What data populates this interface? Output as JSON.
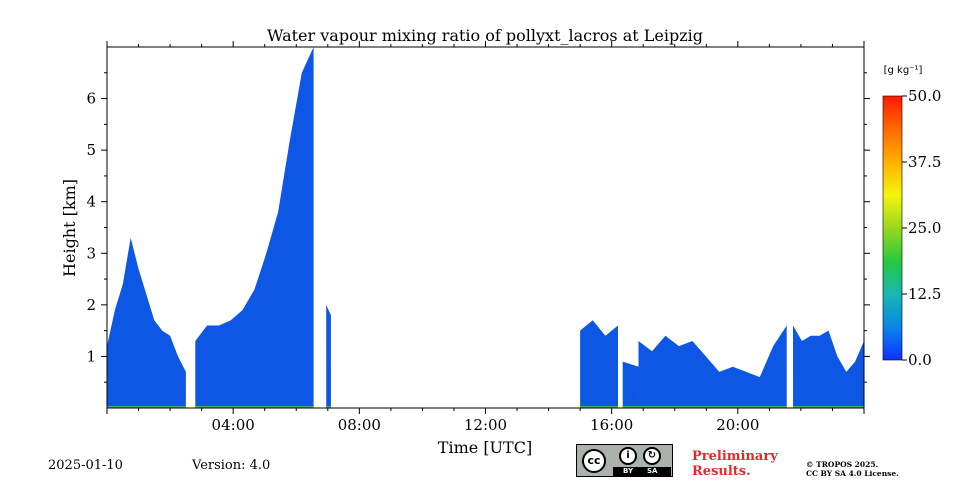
{
  "chart_data": {
    "type": "heatmap",
    "title": "Water vapour mixing ratio of pollyxt_lacros at Leipzig",
    "xlabel": "Time [UTC]",
    "ylabel": "Height [km]",
    "xlim_hours": [
      0,
      24
    ],
    "ylim_km": [
      0,
      7
    ],
    "x_tick_labels": [
      {
        "hour": 4,
        "label": "04:00"
      },
      {
        "hour": 8,
        "label": "08:00"
      },
      {
        "hour": 12,
        "label": "12:00"
      },
      {
        "hour": 16,
        "label": "16:00"
      },
      {
        "hour": 20,
        "label": "20:00"
      }
    ],
    "y_ticks": [
      1,
      2,
      3,
      4,
      5,
      6
    ],
    "colorbar": {
      "unit_label": "[g kg⁻¹]",
      "range": [
        0,
        50
      ],
      "ticks": [
        "0.0",
        "12.5",
        "25.0",
        "37.5",
        "50.0"
      ],
      "colormap": [
        "#1030ff",
        "#0a86e8",
        "#17b8b0",
        "#27c940",
        "#9bd81c",
        "#f4f40e",
        "#ffb000",
        "#ff6a00",
        "#ff1a00"
      ]
    },
    "dominant_value_color": "#0d57e4",
    "observed_profiles": [
      {
        "t_start": 0.0,
        "t_end": 2.5,
        "top_km": [
          1.2,
          1.9,
          2.4,
          3.3,
          2.7,
          2.2,
          1.7,
          1.5,
          1.4,
          1.0,
          0.7
        ]
      },
      {
        "t_start": 2.8,
        "t_end": 6.55,
        "top_km": [
          1.3,
          1.6,
          1.6,
          1.7,
          1.9,
          2.3,
          3.0,
          3.8,
          5.2,
          6.5,
          7.0
        ]
      },
      {
        "t_start": 6.95,
        "t_end": 7.1,
        "top_km": [
          2.0,
          1.8
        ]
      },
      {
        "t_start": 15.0,
        "t_end": 16.2,
        "top_km": [
          1.5,
          1.7,
          1.4,
          1.6
        ]
      },
      {
        "t_start": 16.35,
        "t_end": 16.85,
        "top_km": [
          0.9,
          0.8
        ]
      },
      {
        "t_start": 16.85,
        "t_end": 21.55,
        "top_km": [
          1.3,
          1.1,
          1.4,
          1.2,
          1.3,
          1.0,
          0.7,
          0.8,
          0.7,
          0.6,
          1.2,
          1.6
        ]
      },
      {
        "t_start": 21.75,
        "t_end": 24.0,
        "top_km": [
          1.6,
          1.3,
          1.4,
          1.4,
          1.5,
          1.0,
          0.7,
          0.9,
          1.3
        ]
      }
    ]
  },
  "footer": {
    "date": "2025-01-10",
    "version": "Version: 4.0",
    "preliminary_line1": "Preliminary",
    "preliminary_line2": "Results.",
    "copyright_line1": "© TROPOS 2025.",
    "copyright_line2": "CC BY SA 4.0 License.",
    "cc_logo": {
      "icon": "cc-icon",
      "by": "BY",
      "sa": "SA",
      "cc": "cc"
    }
  }
}
